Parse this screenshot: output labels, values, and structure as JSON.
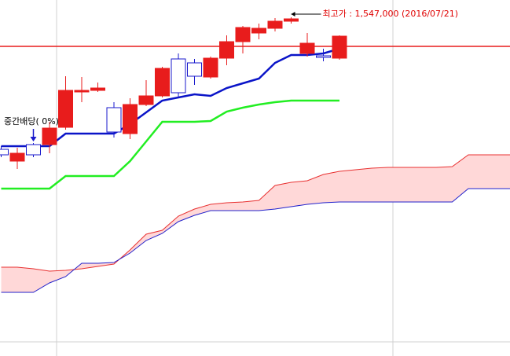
{
  "chart_data": {
    "type": "candlestick",
    "categories": [
      null,
      null,
      null,
      null,
      null,
      null,
      null,
      null,
      null,
      null,
      null,
      null,
      null,
      null,
      null,
      null,
      null,
      null,
      null,
      null,
      null,
      null,
      null,
      null,
      null,
      null,
      null,
      null,
      null,
      null,
      null,
      null,
      null
    ],
    "ylim": [
      1116000,
      1569000
    ],
    "up_color": "#e81c1c",
    "down_color": "#1a1acc",
    "open": [
      1379000,
      1364000,
      1385000,
      1385000,
      1407000,
      1452000,
      1454000,
      1432000,
      1399000,
      1436000,
      1447000,
      1494000,
      1489000,
      1471000,
      1495000,
      1516000,
      1527000,
      1533000,
      1542000,
      1501000,
      1498000,
      1495000,
      null,
      null,
      null,
      null,
      null,
      null,
      null,
      null,
      null,
      null,
      null
    ],
    "high": [
      1383000,
      1381000,
      1387000,
      1414000,
      1472000,
      1471000,
      1464000,
      1439000,
      1444000,
      1467000,
      1484000,
      1501000,
      1494000,
      1497000,
      1524000,
      1536000,
      1539000,
      1546000,
      1547000,
      1527000,
      1507000,
      1524000,
      null,
      null,
      null,
      null,
      null,
      null,
      null,
      null,
      null,
      null,
      null
    ],
    "low": [
      1369000,
      1354000,
      1369000,
      1374000,
      1404000,
      1439000,
      1452000,
      1394000,
      1392000,
      1434000,
      1445000,
      1444000,
      1461000,
      1469000,
      1486000,
      1501000,
      1519000,
      1529000,
      1539000,
      1497000,
      1491000,
      1493000,
      null,
      null,
      null,
      null,
      null,
      null,
      null,
      null,
      null,
      null,
      null
    ],
    "close": [
      1372000,
      1374000,
      1372000,
      1406000,
      1454000,
      1454000,
      1457000,
      1401000,
      1436000,
      1447000,
      1482000,
      1451000,
      1472000,
      1495000,
      1516000,
      1534000,
      1533000,
      1542000,
      1545000,
      1514000,
      1496000,
      1523000,
      null,
      null,
      null,
      null,
      null,
      null,
      null,
      null,
      null,
      null,
      null
    ],
    "series": [
      {
        "color": "#0a14c8",
        "values": [
          1383000,
          1383000,
          1383000,
          1383000,
          1399000,
          1399000,
          1399000,
          1399000,
          1411000,
          1426000,
          1441000,
          1445000,
          1449000,
          1447000,
          1457000,
          1463000,
          1469000,
          1489000,
          1499000,
          1499000,
          1501000,
          1507000,
          null,
          null,
          null,
          null,
          null,
          null,
          null,
          null,
          null,
          null,
          null
        ]
      },
      {
        "color": "#22ee22",
        "values": [
          1329000,
          1329000,
          1329000,
          1329000,
          1345000,
          1345000,
          1345000,
          1345000,
          1364000,
          1389000,
          1414000,
          1414000,
          1414000,
          1415000,
          1427000,
          1432000,
          1436000,
          1439000,
          1441000,
          1441000,
          1441000,
          1441000,
          null,
          null,
          null,
          null,
          null,
          null,
          null,
          null,
          null,
          null,
          null
        ]
      },
      {
        "color": "#e83030",
        "values": [
          1229000,
          1229000,
          1227000,
          1224000,
          1225000,
          1227000,
          1230000,
          1233000,
          1251000,
          1271000,
          1276000,
          1294000,
          1303000,
          1309000,
          1311000,
          1312000,
          1314000,
          1333000,
          1337000,
          1339000,
          1347000,
          1351000,
          1353000,
          1355000,
          1356000,
          1356000,
          1356000,
          1356000,
          1357000,
          1372000,
          1372000,
          1372000,
          1372000
        ]
      },
      {
        "color": "#2222cc",
        "values": [
          1197000,
          1197000,
          1197000,
          1209000,
          1217000,
          1234000,
          1234000,
          1235000,
          1247000,
          1263000,
          1272000,
          1287000,
          1295000,
          1301000,
          1301000,
          1301000,
          1301000,
          1303000,
          1306000,
          1309000,
          1311000,
          1312000,
          1312000,
          1312000,
          1312000,
          1312000,
          1312000,
          1312000,
          1312000,
          1329000,
          1329000,
          1329000,
          1329000
        ]
      }
    ],
    "cloud_color": "#ffd8d8",
    "price_line": {
      "value": 1510000,
      "color": "#e81c1c"
    },
    "annotations": [
      {
        "text": "최고가 : 1,547,000 (2016/07/21)",
        "x": 18,
        "color": "#e00000"
      },
      {
        "text": "중간배당( 0%)",
        "x": 2,
        "color": "#000000"
      }
    ]
  }
}
